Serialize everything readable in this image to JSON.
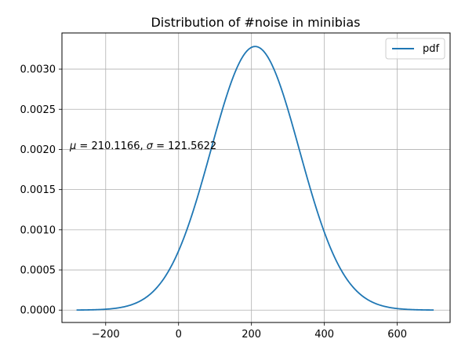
{
  "chart_data": {
    "type": "line",
    "title": "Distribution of #noise in minibias",
    "xlabel": "",
    "ylabel": "",
    "xlim": [
      -320,
      745
    ],
    "ylim": [
      -0.000154,
      0.00345
    ],
    "x_ticks": [
      -200,
      0,
      200,
      400,
      600
    ],
    "x_tick_labels": [
      "−200",
      "0",
      "200",
      "400",
      "600"
    ],
    "y_ticks": [
      0.0,
      0.0005,
      0.001,
      0.0015,
      0.002,
      0.0025,
      0.003
    ],
    "y_tick_labels": [
      "0.0000",
      "0.0005",
      "0.0010",
      "0.0015",
      "0.0020",
      "0.0025",
      "0.0030"
    ],
    "grid": true,
    "legend_position": "top-right",
    "annotation": {
      "mu_symbol": "μ",
      "mu_text": " = 210.1166,  ",
      "sigma_symbol": "σ",
      "sigma_text": " = 121.5622",
      "x": -300,
      "y": 0.002
    },
    "series": [
      {
        "name": "pdf",
        "color": "#1f77b4",
        "distribution": "normal",
        "mu": 210.1166,
        "sigma": 121.5622,
        "x_range": [
          -280,
          700
        ]
      }
    ]
  }
}
